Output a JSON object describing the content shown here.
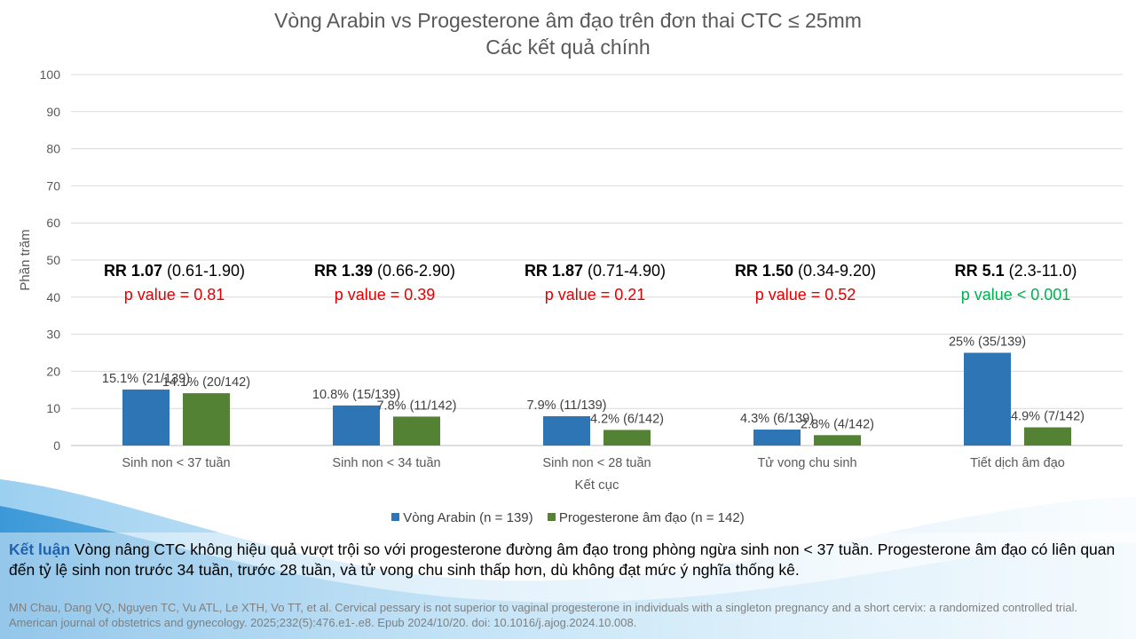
{
  "title_line1": "Vòng Arabin vs Progesterone âm đạo trên đơn thai CTC ≤ 25mm",
  "title_line2": "Các kết quả chính",
  "chart_data": {
    "type": "bar",
    "title": "Vòng Arabin vs Progesterone âm đạo trên đơn thai CTC ≤ 25mm / Các kết quả chính",
    "xlabel": "Kết cục",
    "ylabel": "Phần trăm",
    "ylim": [
      0,
      100
    ],
    "yticks": [
      0,
      10,
      20,
      30,
      40,
      50,
      60,
      70,
      80,
      90,
      100
    ],
    "grid": true,
    "legend_position": "bottom",
    "categories": [
      "Sinh non < 37 tuần",
      "Sinh non < 34 tuần",
      "Sinh non < 28 tuần",
      "Tử vong chu sinh",
      "Tiết dịch âm đạo"
    ],
    "series": [
      {
        "name": "Vòng Arabin (n = 139)",
        "color": "#2e75b6",
        "values": [
          15.1,
          10.8,
          7.9,
          4.3,
          25
        ],
        "labels": [
          "15.1% (21/139)",
          "10.8% (15/139)",
          "7.9% (11/139)",
          "4.3% (6/139)",
          "25% (35/139)"
        ]
      },
      {
        "name": "Progesterone âm đạo (n = 142)",
        "color": "#548235",
        "values": [
          14.1,
          7.8,
          4.2,
          2.8,
          4.9
        ],
        "labels": [
          "14.1% (20/142)",
          "7.8% (11/142)",
          "4.2% (6/142)",
          "2.8% (4/142)",
          "4.9% (7/142)"
        ]
      }
    ],
    "annotations": [
      {
        "rr_label": "RR 1.07",
        "ci": "(0.61-1.90)",
        "p_text": "p value = 0.81",
        "p_color": "#e00000"
      },
      {
        "rr_label": "RR 1.39",
        "ci": "(0.66-2.90)",
        "p_text": "p value = 0.39",
        "p_color": "#e00000"
      },
      {
        "rr_label": "RR 1.87",
        "ci": "(0.71-4.90)",
        "p_text": "p value = 0.21",
        "p_color": "#e00000"
      },
      {
        "rr_label": "RR 1.50",
        "ci": "(0.34-9.20)",
        "p_text": "p value = 0.52",
        "p_color": "#e00000"
      },
      {
        "rr_label": "RR 5.1",
        "ci": "(2.3-11.0)",
        "p_text": "p value < 0.001",
        "p_color": "#00b050"
      }
    ]
  },
  "conclusion": {
    "label": "Kết luận",
    "text": " Vòng nâng CTC không hiệu quả vượt trội so với progesterone đường âm đạo trong phòng ngừa sinh non < 37 tuần.  Progesterone âm đạo có liên quan đến tỷ lệ sinh non trước 34 tuần, trước 28 tuần, và tử vong chu sinh thấp hơn, dù không đạt mức ý nghĩa thống kê."
  },
  "citation": "MN Chau, Dang VQ, Nguyen TC, Vu ATL, Le XTH, Vo TT, et al. Cervical pessary is not superior to vaginal progesterone in individuals with a singleton pregnancy and a short cervix: a randomized controlled trial. American journal of obstetrics and gynecology. 2025;232(5):476.e1-.e8. Epub 2024/10/20. doi: 10.1016/j.ajog.2024.10.008."
}
